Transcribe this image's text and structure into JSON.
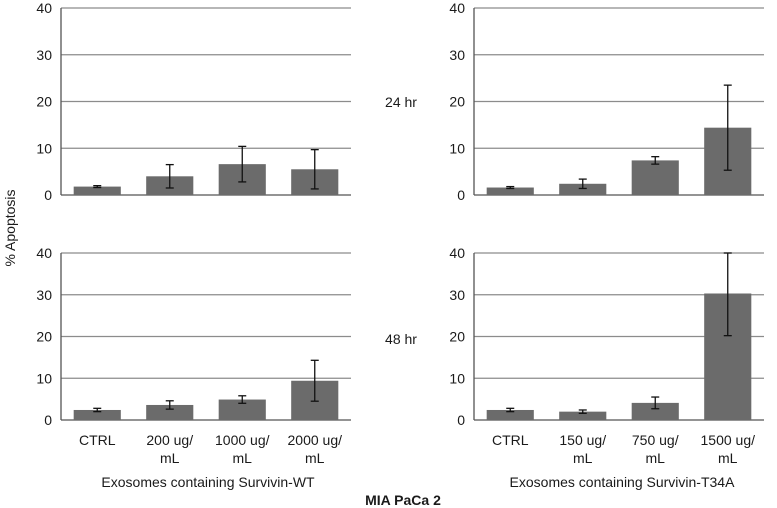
{
  "figure": {
    "ylabel": "% Apoptosis",
    "cell_line": "MIA PaCa 2",
    "row_labels": [
      "24 hr",
      "48 hr"
    ],
    "columns": [
      {
        "xlabel": "Exosomes containing Survivin-WT",
        "categories": [
          "CTRL",
          "200 ug/\nmL",
          "1000 ug/\nmL",
          "2000 ug/\nmL"
        ]
      },
      {
        "xlabel": "Exosomes containing Survivin-T34A",
        "categories": [
          "CTRL",
          "150 ug/\nmL",
          "750 ug/\nmL",
          "1500 ug/\nmL"
        ]
      }
    ]
  },
  "colors": {
    "bar": "#6b6b6b",
    "grid": "#8c8c8c",
    "axis": "#555555",
    "error": "#111111"
  },
  "chart_data": [
    {
      "type": "bar",
      "title": "24 hr",
      "xlabel": "Exosomes containing Survivin-WT",
      "ylabel": "% Apoptosis",
      "categories": [
        "CTRL",
        "200 ug/mL",
        "1000 ug/mL",
        "2000 ug/mL"
      ],
      "values": [
        1.8,
        4.0,
        6.6,
        5.5
      ],
      "errors": [
        0.2,
        2.5,
        3.8,
        4.2
      ],
      "ylim": [
        0,
        40
      ],
      "yticks": [
        0,
        10,
        20,
        30,
        40
      ],
      "grid": true
    },
    {
      "type": "bar",
      "title": "24 hr",
      "xlabel": "Exosomes containing Survivin-T34A",
      "ylabel": "% Apoptosis",
      "categories": [
        "CTRL",
        "150 ug/mL",
        "750 ug/mL",
        "1500 ug/mL"
      ],
      "values": [
        1.6,
        2.4,
        7.4,
        14.4
      ],
      "errors": [
        0.2,
        1.0,
        0.8,
        9.1
      ],
      "ylim": [
        0,
        40
      ],
      "yticks": [
        0,
        10,
        20,
        30,
        40
      ],
      "grid": true
    },
    {
      "type": "bar",
      "title": "48 hr",
      "xlabel": "Exosomes containing Survivin-WT",
      "ylabel": "% Apoptosis",
      "categories": [
        "CTRL",
        "200 ug/mL",
        "1000 ug/mL",
        "2000 ug/mL"
      ],
      "values": [
        2.4,
        3.6,
        4.9,
        9.4
      ],
      "errors": [
        0.4,
        1.0,
        0.9,
        4.9
      ],
      "ylim": [
        0,
        40
      ],
      "yticks": [
        0,
        10,
        20,
        30,
        40
      ],
      "grid": true
    },
    {
      "type": "bar",
      "title": "48 hr",
      "xlabel": "Exosomes containing Survivin-T34A",
      "ylabel": "% Apoptosis",
      "categories": [
        "CTRL",
        "150 ug/mL",
        "750 ug/mL",
        "1500 ug/mL"
      ],
      "values": [
        2.4,
        2.0,
        4.1,
        30.3
      ],
      "errors": [
        0.4,
        0.4,
        1.4,
        10.1
      ],
      "ylim": [
        0,
        40
      ],
      "yticks": [
        0,
        10,
        20,
        30,
        40
      ],
      "grid": true
    }
  ]
}
